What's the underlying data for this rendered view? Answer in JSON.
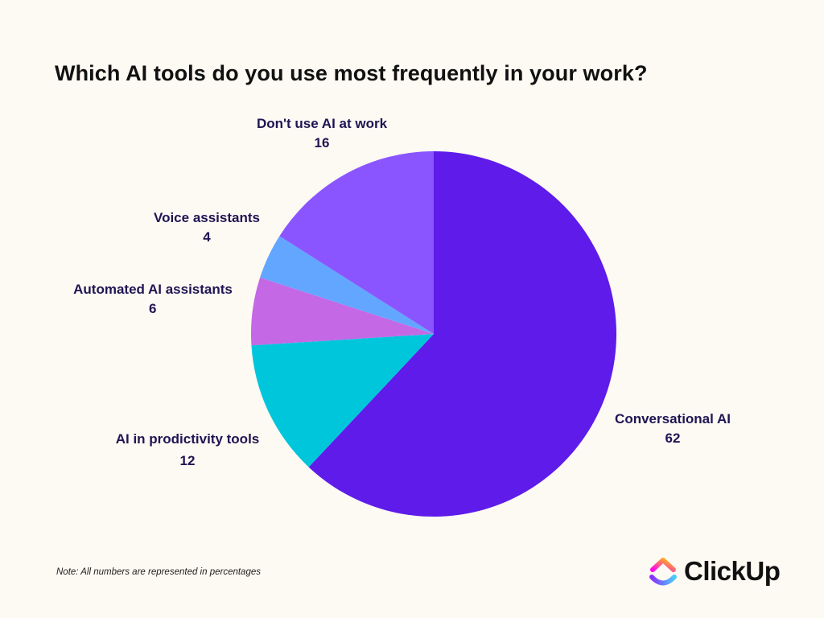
{
  "title": "Which AI tools do you use most frequently in your work?",
  "note": "Note: All numbers are represented in percentages",
  "brand": {
    "name": "ClickUp",
    "icon": "clickup-logo-icon"
  },
  "chart_data": {
    "type": "pie",
    "title": "Which AI tools do you use most frequently in your work?",
    "slices": [
      {
        "label": "Conversational AI",
        "value": 62,
        "color": "#5e1bea"
      },
      {
        "label": "AI in prodictivity tools",
        "value": 12,
        "color": "#00c6dc"
      },
      {
        "label": "Automated AI assistants",
        "value": 6,
        "color": "#c468e6"
      },
      {
        "label": "Voice assistants",
        "value": 4,
        "color": "#62a6ff"
      },
      {
        "label": "Don't use AI at work",
        "value": 16,
        "color": "#8a55ff"
      }
    ],
    "start_angle": "12 o'clock",
    "direction": "clockwise"
  }
}
